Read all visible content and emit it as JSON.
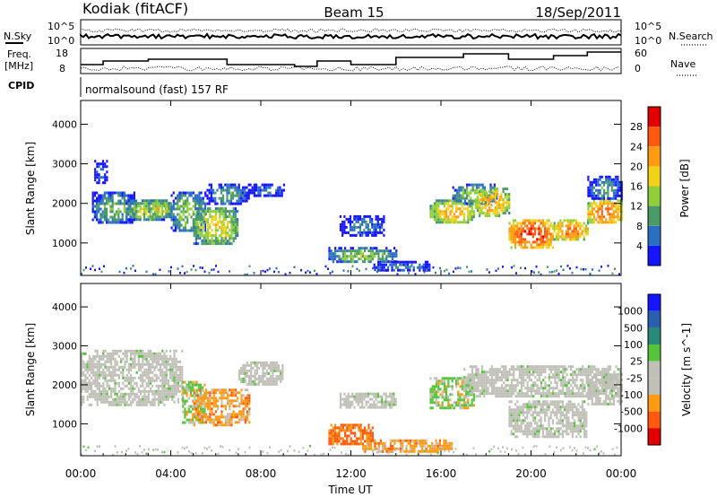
{
  "header": {
    "station": "Kodiak (fitACF)",
    "beam": "Beam 15",
    "date": "18/Sep/2011"
  },
  "noise_panel": {
    "left_label": "N.Sky",
    "right_label": "N.Search",
    "ytick_top": "10^5",
    "ytick_bottom": "10^0"
  },
  "freq_panel": {
    "left_label_line1": "Freq.",
    "left_label_line2": "[MHz]",
    "right_label": "Nave",
    "left_ticks": [
      "18",
      "8"
    ],
    "right_ticks": [
      "60",
      "0"
    ]
  },
  "cpid_panel": {
    "label": "CPID",
    "mode_text": "normalsound (fast) 157 RF"
  },
  "colors": {
    "power_scale": [
      "#1515ff",
      "#2a6fc4",
      "#4a9a6a",
      "#8fcf3a",
      "#f2d11a",
      "#ff9a12",
      "#ff5a0e",
      "#e00000"
    ],
    "velocity_scale": [
      "#e00000",
      "#ff5a0e",
      "#ff9a12",
      "#c0c0b8",
      "#c0c0b8",
      "#55c43a",
      "#2a8a7a",
      "#2a5fb0",
      "#1515ff"
    ]
  },
  "chart_data": [
    {
      "type": "heatmap",
      "panel": "power",
      "ylabel": "Slant Range [km]",
      "ylim": [
        180,
        4600
      ],
      "yticks": [
        "1000",
        "2000",
        "3000",
        "4000"
      ],
      "xlim": [
        0,
        24
      ],
      "colorbar_label": "Power [dB]",
      "colorbar_ticks": [
        "4",
        "8",
        "12",
        "16",
        "20",
        "24",
        "28"
      ],
      "colorbar_range": [
        0,
        32
      ],
      "regions": [
        {
          "t": [
            0.5,
            2.5
          ],
          "r": [
            1500,
            2300
          ],
          "value": 12
        },
        {
          "t": [
            0.6,
            1.2
          ],
          "r": [
            2500,
            3100
          ],
          "value": 6
        },
        {
          "t": [
            2.0,
            4.0
          ],
          "r": [
            1600,
            2100
          ],
          "value": 16
        },
        {
          "t": [
            3.0,
            4.0
          ],
          "r": [
            1700,
            2100
          ],
          "value": 18
        },
        {
          "t": [
            4.0,
            5.5
          ],
          "r": [
            1300,
            2300
          ],
          "value": 14
        },
        {
          "t": [
            5.0,
            7.0
          ],
          "r": [
            1000,
            1900
          ],
          "value": 18
        },
        {
          "t": [
            5.5,
            7.5
          ],
          "r": [
            2000,
            2500
          ],
          "value": 10
        },
        {
          "t": [
            7.5,
            9.0
          ],
          "r": [
            2200,
            2500
          ],
          "value": 8
        },
        {
          "t": [
            11.0,
            14.0
          ],
          "r": [
            500,
            900
          ],
          "value": 14
        },
        {
          "t": [
            13.0,
            15.5
          ],
          "r": [
            300,
            550
          ],
          "value": 8
        },
        {
          "t": [
            11.5,
            13.5
          ],
          "r": [
            1200,
            1700
          ],
          "value": 8
        },
        {
          "t": [
            15.5,
            17.5
          ],
          "r": [
            1500,
            2100
          ],
          "value": 20
        },
        {
          "t": [
            16.5,
            18.5
          ],
          "r": [
            2000,
            2500
          ],
          "value": 14
        },
        {
          "t": [
            17.5,
            19.0
          ],
          "r": [
            1700,
            2400
          ],
          "value": 22
        },
        {
          "t": [
            19.0,
            21.0
          ],
          "r": [
            900,
            1600
          ],
          "value": 28
        },
        {
          "t": [
            21.0,
            22.5
          ],
          "r": [
            1100,
            1600
          ],
          "value": 24
        },
        {
          "t": [
            22.5,
            24.0
          ],
          "r": [
            1500,
            2100
          ],
          "value": 26
        },
        {
          "t": [
            22.5,
            24.0
          ],
          "r": [
            2100,
            2700
          ],
          "value": 10
        }
      ]
    },
    {
      "type": "heatmap",
      "panel": "velocity",
      "ylabel": "Slant Range [km]",
      "xlabel": "Time UT",
      "ylim": [
        180,
        4600
      ],
      "yticks": [
        "1000",
        "2000",
        "3000",
        "4000"
      ],
      "xlim": [
        0,
        24
      ],
      "xticks": [
        "00:00",
        "04:00",
        "08:00",
        "12:00",
        "16:00",
        "20:00",
        "00:00"
      ],
      "colorbar_label": "Velocity [m s^-1]",
      "colorbar_ticks": [
        "-1000",
        "-500",
        "-100",
        "-25",
        "25",
        "100",
        "500",
        "1000"
      ],
      "regions": [
        {
          "t": [
            0.0,
            4.5
          ],
          "r": [
            1500,
            2900
          ],
          "value": 0
        },
        {
          "t": [
            4.5,
            5.5
          ],
          "r": [
            1000,
            2100
          ],
          "value": 100
        },
        {
          "t": [
            5.0,
            7.5
          ],
          "r": [
            1000,
            1900
          ],
          "value": -100
        },
        {
          "t": [
            7.0,
            9.0
          ],
          "r": [
            2000,
            2600
          ],
          "value": 0
        },
        {
          "t": [
            11.0,
            13.0
          ],
          "r": [
            500,
            1000
          ],
          "value": -500
        },
        {
          "t": [
            12.5,
            16.5
          ],
          "r": [
            300,
            600
          ],
          "value": -100
        },
        {
          "t": [
            11.5,
            14.0
          ],
          "r": [
            1400,
            1800
          ],
          "value": 0
        },
        {
          "t": [
            15.5,
            17.5
          ],
          "r": [
            1400,
            2200
          ],
          "value": 100
        },
        {
          "t": [
            17.0,
            24.0
          ],
          "r": [
            1700,
            2500
          ],
          "value": 0
        },
        {
          "t": [
            19.0,
            22.5
          ],
          "r": [
            700,
            1600
          ],
          "value": 0
        },
        {
          "t": [
            22.5,
            24.0
          ],
          "r": [
            1500,
            2300
          ],
          "value": 0
        }
      ]
    }
  ]
}
